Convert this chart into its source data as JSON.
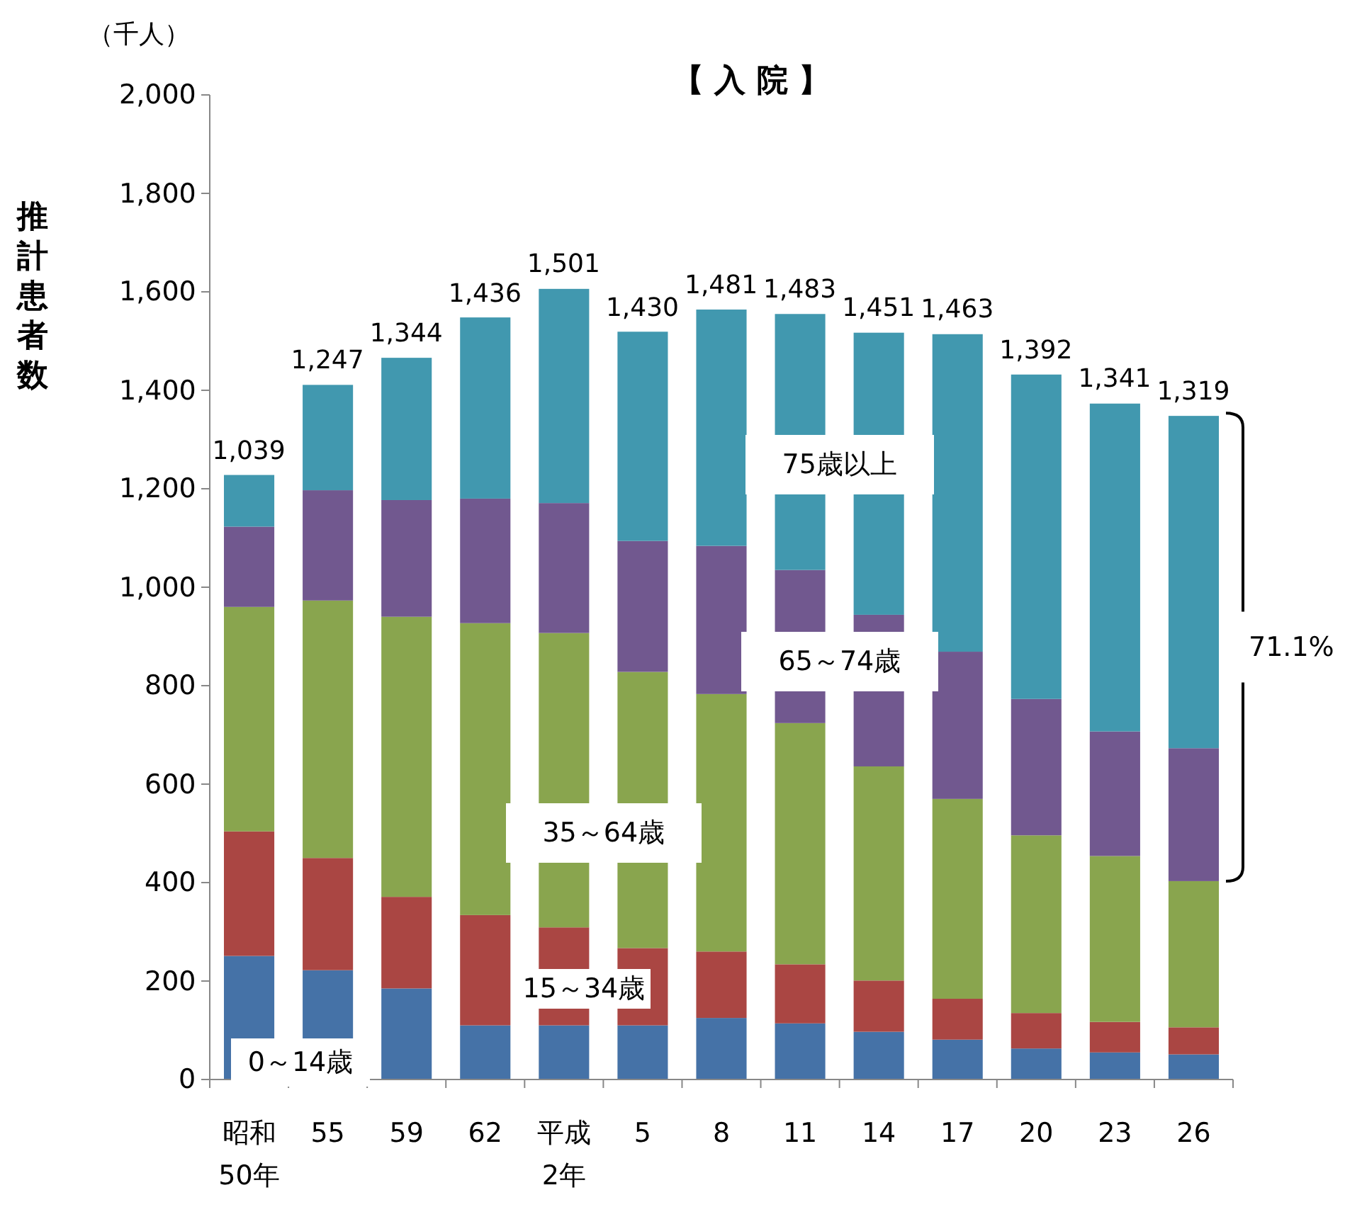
{
  "chart_data": {
    "type": "bar",
    "stacked": true,
    "title": "【 入 院 】",
    "ylabel": "推計患者数",
    "annotations": [
      "（千人）",
      "71.1%",
      {
        "text": "1,039",
        "x": "昭和50年",
        "y": 1228
      },
      {
        "text": "1,247",
        "x": "55",
        "y": 1411
      },
      {
        "text": "1,344",
        "x": "59",
        "y": 1466
      },
      {
        "text": "1,436",
        "x": "62",
        "y": 1548
      },
      {
        "text": "1,501",
        "x": "平成2年",
        "y": 1606
      },
      {
        "text": "1,430",
        "x": "5",
        "y": 1519
      },
      {
        "text": "1,481",
        "x": "8",
        "y": 1564
      },
      {
        "text": "1,483",
        "x": "11",
        "y": 1555
      },
      {
        "text": "1,451",
        "x": "14",
        "y": 1517
      },
      {
        "text": "1,463",
        "x": "17",
        "y": 1514
      },
      {
        "text": "1,392",
        "x": "20",
        "y": 1432
      },
      {
        "text": "1,341",
        "x": "23",
        "y": 1373
      },
      {
        "text": "1,319",
        "x": "26",
        "y": 1348
      }
    ],
    "categories": [
      "昭和50年",
      "55",
      "59",
      "62",
      "平成2年",
      "5",
      "8",
      "11",
      "14",
      "17",
      "20",
      "23",
      "26"
    ],
    "series": [
      {
        "name": "0～14歳",
        "color": "#4572a7",
        "values": [
          251,
          222,
          185,
          110,
          110,
          110,
          125,
          114,
          97,
          81,
          63,
          55,
          51
        ]
      },
      {
        "name": "15～34歳",
        "color": "#aa4643",
        "values": [
          253,
          228,
          186,
          224,
          199,
          157,
          135,
          120,
          104,
          83,
          72,
          62,
          55
        ]
      },
      {
        "name": "35～64歳",
        "color": "#89a54e",
        "values": [
          456,
          523,
          569,
          593,
          598,
          561,
          523,
          490,
          435,
          406,
          361,
          337,
          297
        ]
      },
      {
        "name": "65～74歳",
        "color": "#71588f",
        "values": [
          163,
          224,
          237,
          253,
          264,
          266,
          301,
          311,
          308,
          299,
          277,
          253,
          270
        ]
      },
      {
        "name": "75歳以上",
        "color": "#4198af",
        "values": [
          105,
          214,
          289,
          368,
          435,
          425,
          480,
          520,
          573,
          645,
          659,
          666,
          675
        ]
      }
    ],
    "ylim": [
      0,
      2000
    ],
    "yticks": [
      {
        "value": 0,
        "label": "0"
      },
      {
        "value": 200,
        "label": "200"
      },
      {
        "value": 400,
        "label": "400"
      },
      {
        "value": 600,
        "label": "600"
      },
      {
        "value": 800,
        "label": "800"
      },
      {
        "value": 1000,
        "label": "1,000"
      },
      {
        "value": 1200,
        "label": "1,200"
      },
      {
        "value": 1400,
        "label": "1,400"
      },
      {
        "value": 1600,
        "label": "1,600"
      },
      {
        "value": 1800,
        "label": "1,800"
      },
      {
        "value": 2000,
        "label": "2,000"
      }
    ],
    "legend": false,
    "grid": false
  }
}
